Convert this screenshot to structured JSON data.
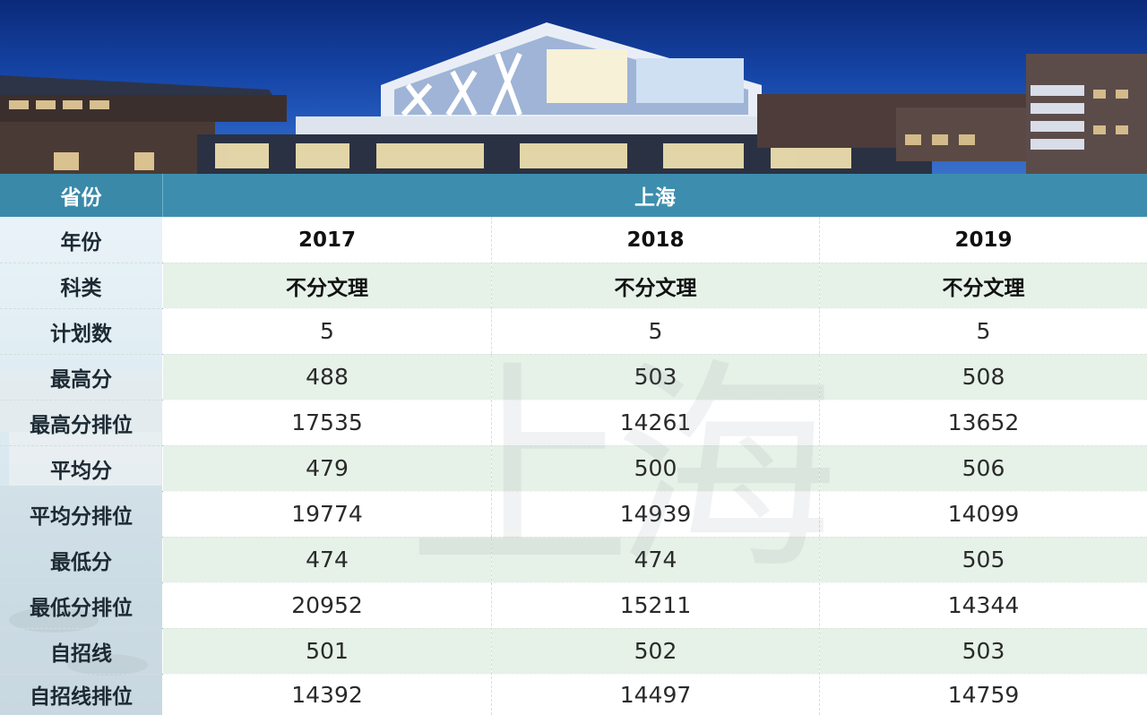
{
  "province": {
    "label": "省份",
    "value": "上海"
  },
  "watermark": "上海",
  "rows": [
    {
      "label": "年份",
      "values": [
        "2017",
        "2018",
        "2019"
      ]
    },
    {
      "label": "科类",
      "values": [
        "不分文理",
        "不分文理",
        "不分文理"
      ]
    },
    {
      "label": "计划数",
      "values": [
        "5",
        "5",
        "5"
      ]
    },
    {
      "label": "最高分",
      "values": [
        "488",
        "503",
        "508"
      ]
    },
    {
      "label": "最高分排位",
      "values": [
        "17535",
        "14261",
        "13652"
      ]
    },
    {
      "label": "平均分",
      "values": [
        "479",
        "500",
        "506"
      ]
    },
    {
      "label": "平均分排位",
      "values": [
        "19774",
        "14939",
        "14099"
      ]
    },
    {
      "label": "最低分",
      "values": [
        "474",
        "474",
        "505"
      ]
    },
    {
      "label": "最低分排位",
      "values": [
        "20952",
        "15211",
        "14344"
      ]
    },
    {
      "label": "自招线",
      "values": [
        "501",
        "502",
        "503"
      ]
    },
    {
      "label": "自招线排位",
      "values": [
        "14392",
        "14497",
        "14759"
      ]
    }
  ],
  "colors": {
    "header_bg": "#3d8eae",
    "row_green": "#e3efe5",
    "row_white": "#ffffff"
  }
}
